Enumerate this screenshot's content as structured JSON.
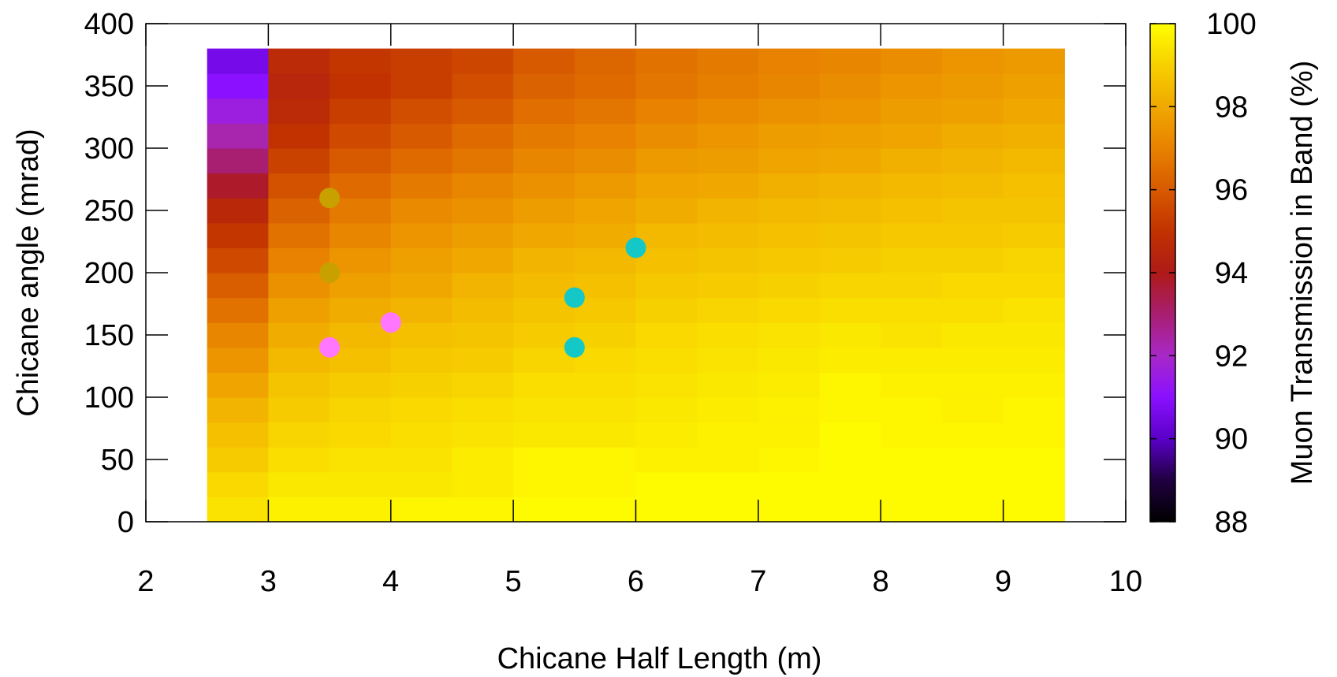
{
  "chart_data": {
    "type": "heatmap",
    "title": "",
    "xlabel": "Chicane Half Length (m)",
    "ylabel": "Chicane angle (mrad)",
    "colorbar_label": "Muon Transmission in Band (%)",
    "xlim": [
      2,
      10
    ],
    "ylim": [
      0,
      400
    ],
    "x_ticks": [
      "2",
      "3",
      "4",
      "5",
      "6",
      "7",
      "8",
      "9",
      "10"
    ],
    "y_ticks": [
      "0",
      "50",
      "100",
      "150",
      "200",
      "250",
      "300",
      "350",
      "400"
    ],
    "colorbar_range": [
      88,
      100
    ],
    "colorbar_ticks": [
      "88",
      "90",
      "92",
      "94",
      "96",
      "98",
      "100"
    ],
    "colorbar_stops": [
      {
        "value": 88,
        "color": "#000000"
      },
      {
        "value": 89,
        "color": "#200040"
      },
      {
        "value": 90,
        "color": "#5a00c8"
      },
      {
        "value": 91,
        "color": "#8a10ff"
      },
      {
        "value": 92,
        "color": "#a828c8"
      },
      {
        "value": 93,
        "color": "#a81e70"
      },
      {
        "value": 94,
        "color": "#ae1a18"
      },
      {
        "value": 95,
        "color": "#c23200"
      },
      {
        "value": 96,
        "color": "#d75a00"
      },
      {
        "value": 97,
        "color": "#e88200"
      },
      {
        "value": 98,
        "color": "#f0a800"
      },
      {
        "value": 99,
        "color": "#f7d000"
      },
      {
        "value": 100,
        "color": "#ffff00"
      }
    ],
    "grid": false,
    "heatmap": {
      "x_centers": [
        2.75,
        3.25,
        3.75,
        4.25,
        4.75,
        5.25,
        5.75,
        6.25,
        6.75,
        7.25,
        7.75,
        8.25,
        8.75,
        9.25
      ],
      "y_centers": [
        10,
        30,
        50,
        70,
        90,
        110,
        130,
        150,
        170,
        190,
        210,
        230,
        250,
        270,
        290,
        310,
        330,
        350,
        370
      ],
      "y_bins_note": "rows from bottom (y=0) to top (y=380), 20 mrad each; columns from x=2.5 to 9.5, 0.5 m each",
      "values": [
        [
          99.4,
          99.7,
          99.7,
          99.8,
          99.8,
          99.9,
          99.9,
          99.9,
          99.9,
          99.9,
          99.9,
          99.9,
          99.9,
          99.9
        ],
        [
          99.2,
          99.5,
          99.5,
          99.5,
          99.6,
          99.8,
          99.8,
          99.9,
          99.9,
          99.9,
          99.9,
          99.9,
          99.9,
          99.9
        ],
        [
          98.9,
          99.3,
          99.4,
          99.4,
          99.6,
          99.8,
          99.8,
          99.7,
          99.7,
          99.8,
          99.9,
          99.9,
          99.9,
          99.9
        ],
        [
          98.6,
          99.1,
          99.2,
          99.3,
          99.4,
          99.5,
          99.5,
          99.6,
          99.7,
          99.7,
          99.9,
          99.8,
          99.8,
          99.8
        ],
        [
          98.3,
          98.9,
          99.1,
          99.2,
          99.3,
          99.4,
          99.4,
          99.5,
          99.6,
          99.7,
          99.8,
          99.8,
          99.7,
          99.8
        ],
        [
          97.9,
          98.7,
          98.9,
          99.0,
          99.1,
          99.3,
          99.3,
          99.4,
          99.5,
          99.6,
          99.8,
          99.7,
          99.7,
          99.7
        ],
        [
          97.5,
          98.4,
          98.6,
          98.8,
          98.9,
          99.1,
          99.2,
          99.3,
          99.4,
          99.5,
          99.6,
          99.6,
          99.6,
          99.6
        ],
        [
          97.1,
          98.1,
          98.4,
          98.6,
          98.7,
          98.9,
          99.0,
          99.2,
          99.3,
          99.4,
          99.5,
          99.4,
          99.5,
          99.5
        ],
        [
          96.6,
          97.8,
          98.1,
          98.3,
          98.5,
          98.7,
          98.8,
          99.0,
          99.1,
          99.2,
          99.3,
          99.3,
          99.3,
          99.4
        ],
        [
          96.1,
          97.4,
          97.8,
          98.0,
          98.3,
          98.5,
          98.6,
          98.8,
          98.9,
          99.0,
          99.1,
          99.1,
          99.2,
          99.2
        ],
        [
          95.6,
          97.0,
          97.5,
          97.8,
          98.0,
          98.3,
          98.4,
          98.6,
          98.7,
          98.8,
          98.9,
          99.0,
          99.0,
          99.1
        ],
        [
          95.1,
          96.6,
          97.1,
          97.5,
          97.7,
          98.0,
          98.1,
          98.4,
          98.5,
          98.6,
          98.7,
          98.8,
          98.8,
          98.9
        ],
        [
          94.6,
          96.2,
          96.8,
          97.2,
          97.4,
          97.7,
          97.9,
          98.1,
          98.3,
          98.4,
          98.5,
          98.6,
          98.7,
          98.7
        ],
        [
          93.8,
          95.8,
          96.4,
          96.8,
          97.1,
          97.4,
          97.6,
          97.9,
          98.0,
          98.2,
          98.3,
          98.4,
          98.5,
          98.6
        ],
        [
          93.0,
          95.4,
          96.0,
          96.4,
          96.7,
          97.1,
          97.3,
          97.6,
          97.7,
          97.9,
          98.0,
          98.2,
          98.3,
          98.4
        ],
        [
          92.3,
          95.0,
          95.6,
          96.0,
          96.4,
          96.8,
          97.0,
          97.3,
          97.5,
          97.7,
          97.8,
          97.9,
          98.1,
          98.2
        ],
        [
          91.6,
          94.7,
          95.3,
          95.7,
          96.0,
          96.5,
          96.7,
          97.0,
          97.2,
          97.4,
          97.5,
          97.7,
          97.8,
          98.0
        ],
        [
          91.0,
          94.5,
          95.0,
          95.3,
          95.7,
          96.2,
          96.4,
          96.7,
          96.9,
          97.1,
          97.3,
          97.5,
          97.6,
          97.8
        ],
        [
          90.6,
          94.7,
          95.1,
          95.3,
          95.5,
          96.0,
          96.3,
          96.6,
          96.8,
          97.0,
          97.1,
          97.3,
          97.5,
          97.6
        ]
      ]
    },
    "points": [
      {
        "x": 3.5,
        "y": 260,
        "color": "#c8a000"
      },
      {
        "x": 3.5,
        "y": 200,
        "color": "#c8a000"
      },
      {
        "x": 3.5,
        "y": 140,
        "color": "#ff77ff"
      },
      {
        "x": 4.0,
        "y": 160,
        "color": "#ff77ff"
      },
      {
        "x": 5.5,
        "y": 180,
        "color": "#14c8c8"
      },
      {
        "x": 5.5,
        "y": 140,
        "color": "#14c8c8"
      },
      {
        "x": 6.0,
        "y": 220,
        "color": "#14c8c8"
      }
    ]
  }
}
